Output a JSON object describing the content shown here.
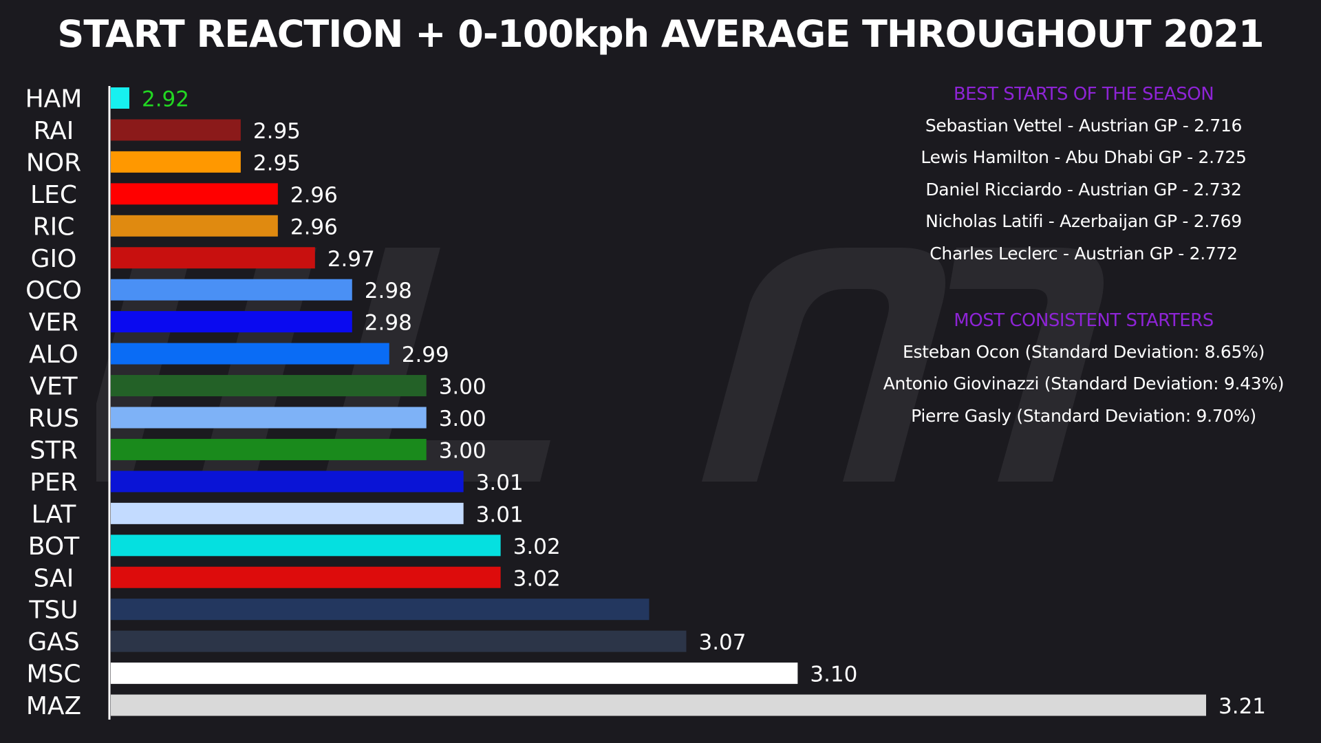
{
  "title": "START REACTION + 0-100kph AVERAGE THROUGHOUT 2021",
  "chart_data": {
    "type": "bar",
    "orientation": "horizontal",
    "categories": [
      "HAM",
      "RAI",
      "NOR",
      "LEC",
      "RIC",
      "GIO",
      "OCO",
      "VER",
      "ALO",
      "VET",
      "RUS",
      "STR",
      "PER",
      "LAT",
      "BOT",
      "SAI",
      "TSU",
      "GAS",
      "MSC",
      "MAZ"
    ],
    "values": [
      2.92,
      2.95,
      2.95,
      2.96,
      2.96,
      2.97,
      2.98,
      2.98,
      2.99,
      3.0,
      3.0,
      3.0,
      3.01,
      3.01,
      3.02,
      3.02,
      3.06,
      3.07,
      3.1,
      3.21
    ],
    "value_labels": [
      "2.92",
      "2.95",
      "2.95",
      "2.96",
      "2.96",
      "2.97",
      "2.98",
      "2.98",
      "2.99",
      "3.00",
      "3.00",
      "3.00",
      "3.01",
      "3.01",
      "3.02",
      "3.02",
      "",
      "3.07",
      "3.10",
      "3.21"
    ],
    "colors": [
      "#17f0f0",
      "#8b1a1a",
      "#ff9800",
      "#ff0000",
      "#e08a10",
      "#c8100f",
      "#4a90f5",
      "#0a0af0",
      "#0a6cf5",
      "#236127",
      "#7eb2f7",
      "#1a8a1c",
      "#0a14d6",
      "#c3dbff",
      "#05e0e0",
      "#dd0c0c",
      "#23375f",
      "#2c3548",
      "#ffffff",
      "#d9d9d9"
    ],
    "label_colors": [
      "#22d722",
      "#ffffff",
      "#ffffff",
      "#ffffff",
      "#ffffff",
      "#ffffff",
      "#ffffff",
      "#ffffff",
      "#ffffff",
      "#ffffff",
      "#ffffff",
      "#ffffff",
      "#ffffff",
      "#ffffff",
      "#ffffff",
      "#ffffff",
      "#ffffff",
      "#ffffff",
      "#ffffff",
      "#ffffff"
    ],
    "xlim": [
      2.915,
      3.21
    ]
  },
  "best_starts": {
    "heading": "BEST STARTS OF THE SEASON",
    "items": [
      "Sebastian Vettel - Austrian GP - 2.716",
      "Lewis Hamilton - Abu Dhabi GP - 2.725",
      "Daniel Ricciardo - Austrian GP - 2.732",
      "Nicholas Latifi - Azerbaijan GP - 2.769",
      "Charles Leclerc - Austrian GP - 2.772"
    ]
  },
  "consistent_starters": {
    "heading": "MOST CONSISTENT STARTERS",
    "items": [
      "Esteban Ocon (Standard Deviation: 8.65%)",
      "Antonio Giovinazzi (Standard Deviation: 9.43%)",
      "Pierre Gasly (Standard Deviation: 9.70%)"
    ]
  }
}
